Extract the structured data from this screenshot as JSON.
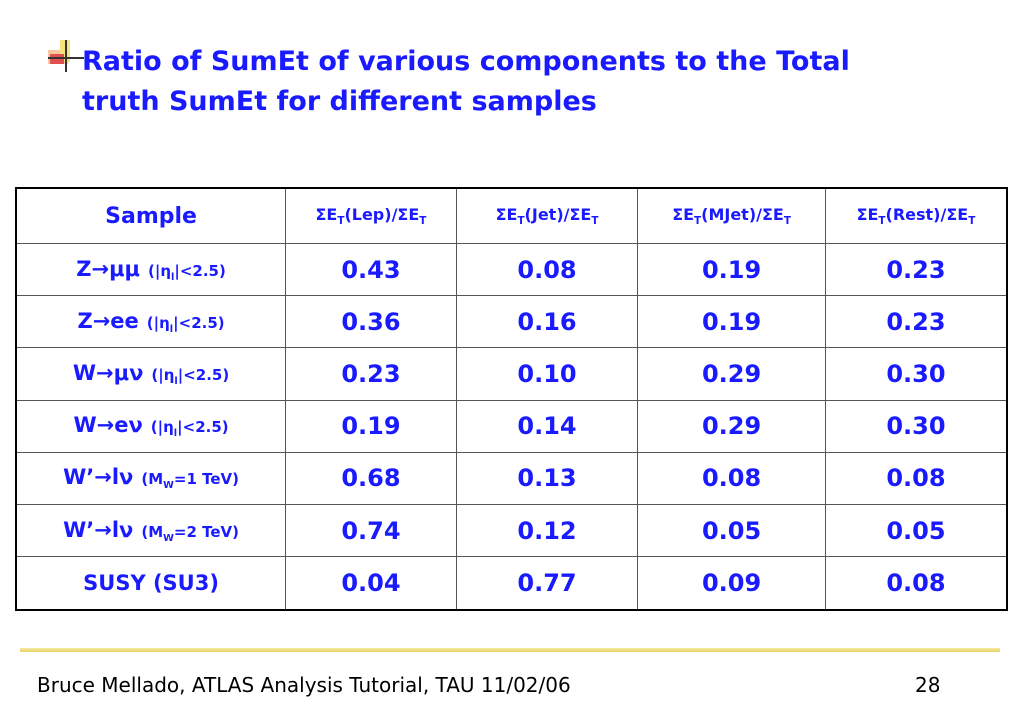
{
  "title": [
    "Ratio of SumEt of various components to the Total",
    "truth SumEt for different samples"
  ],
  "table": {
    "header": [
      [
        {
          "t": "Sample"
        }
      ],
      [
        {
          "t": "ΣE"
        },
        {
          "sub": "T"
        },
        {
          "t": "(Lep)/ΣE"
        },
        {
          "sub": "T"
        }
      ],
      [
        {
          "t": "ΣE"
        },
        {
          "sub": "T"
        },
        {
          "t": "(Jet)/ΣE"
        },
        {
          "sub": "T"
        }
      ],
      [
        {
          "t": "ΣE"
        },
        {
          "sub": "T"
        },
        {
          "t": "(MJet)/ΣE"
        },
        {
          "sub": "T"
        }
      ],
      [
        {
          "t": "ΣE"
        },
        {
          "sub": "T"
        },
        {
          "t": "(Rest)/ΣE"
        },
        {
          "sub": "T"
        }
      ]
    ],
    "rows": [
      {
        "main": "Z→μμ",
        "note": [
          {
            "t": "(|η"
          },
          {
            "sub": "l"
          },
          {
            "t": "|<2.5)"
          }
        ],
        "values": [
          "0.43",
          "0.08",
          "0.19",
          "0.23"
        ]
      },
      {
        "main": "Z→ee",
        "note": [
          {
            "t": "(|η"
          },
          {
            "sub": "l"
          },
          {
            "t": "|<2.5)"
          }
        ],
        "values": [
          "0.36",
          "0.16",
          "0.19",
          "0.23"
        ]
      },
      {
        "main": "W→μν",
        "note": [
          {
            "t": "(|η"
          },
          {
            "sub": "l"
          },
          {
            "t": "|<2.5)"
          }
        ],
        "values": [
          "0.23",
          "0.10",
          "0.29",
          "0.30"
        ]
      },
      {
        "main": "W→eν",
        "note": [
          {
            "t": "(|η"
          },
          {
            "sub": "l"
          },
          {
            "t": "|<2.5)"
          }
        ],
        "values": [
          "0.19",
          "0.14",
          "0.29",
          "0.30"
        ]
      },
      {
        "main": "W’→lν",
        "note": [
          {
            "t": "(M"
          },
          {
            "sub": "W"
          },
          {
            "t": "=1 TeV)"
          }
        ],
        "values": [
          "0.68",
          "0.13",
          "0.08",
          "0.08"
        ]
      },
      {
        "main": "W’→lν",
        "note": [
          {
            "t": "(M"
          },
          {
            "sub": "W"
          },
          {
            "t": "=2 TeV)"
          }
        ],
        "values": [
          "0.74",
          "0.12",
          "0.05",
          "0.05"
        ]
      },
      {
        "main": "SUSY (SU3)",
        "values": [
          "0.04",
          "0.77",
          "0.09",
          "0.08"
        ]
      }
    ]
  },
  "footer": {
    "text": "Bruce Mellado, ATLAS Analysis Tutorial, TAU 11/02/06",
    "page": "28"
  }
}
